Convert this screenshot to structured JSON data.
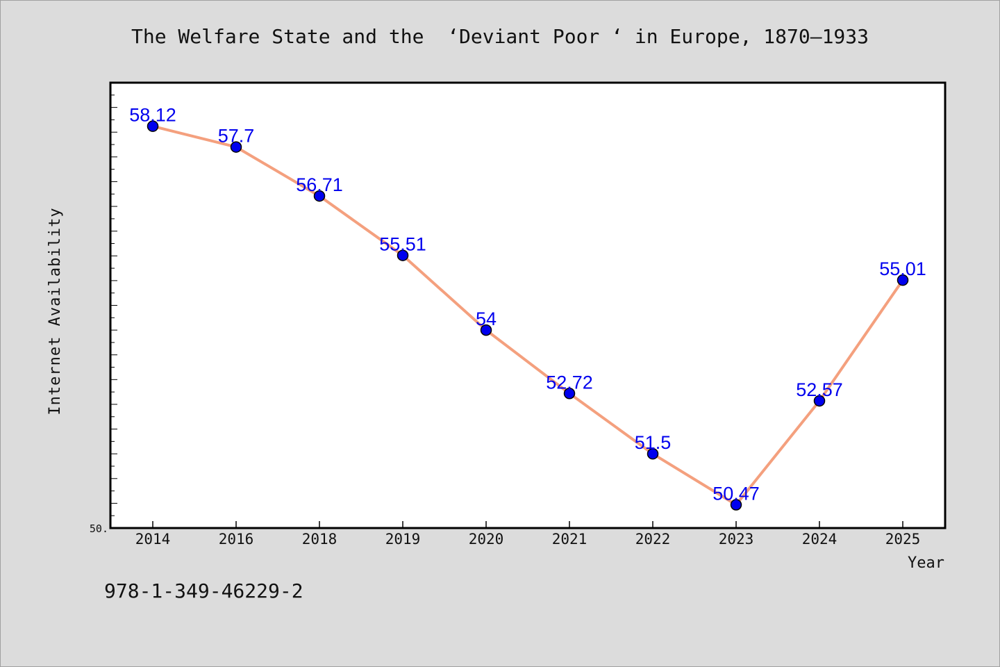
{
  "chart_data": {
    "type": "line",
    "title": "The Welfare State and the  ‘Deviant Poor ‘ in Europe, 1870–1933",
    "xlabel": "Year",
    "ylabel": "Internet Availability",
    "categories": [
      "2014",
      "2016",
      "2018",
      "2019",
      "2020",
      "2021",
      "2022",
      "2023",
      "2024",
      "2025"
    ],
    "values": [
      58.12,
      57.7,
      56.71,
      55.51,
      54,
      52.72,
      51.5,
      50.47,
      52.57,
      55.01
    ],
    "data_labels": [
      "58.12",
      "57.7",
      "56.71",
      "55.51",
      "54",
      "52.72",
      "51.5",
      "50.47",
      "52.57",
      "55.01"
    ],
    "y_tick_label": "50.",
    "ylim": [
      50,
      59.0
    ],
    "grid": false,
    "line_color": "#f4a07e",
    "marker_color": "#0000ee",
    "label_color": "#0000ee"
  },
  "footer": {
    "isbn": "978-1-349-46229-2"
  }
}
